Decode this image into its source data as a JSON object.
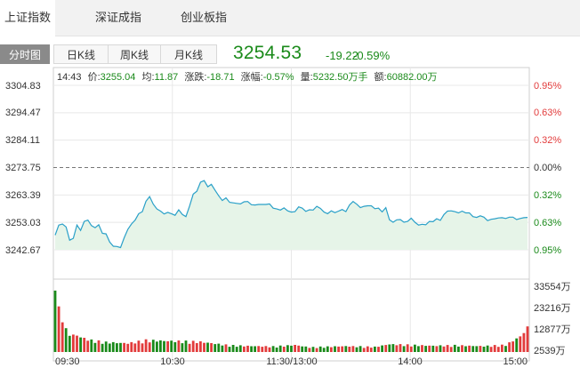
{
  "top_tabs": [
    {
      "label": "上证指数",
      "active": true
    },
    {
      "label": "深证成指",
      "active": false
    },
    {
      "label": "创业板指",
      "active": false
    }
  ],
  "sub_tabs": [
    {
      "label": "分时图",
      "active": true
    },
    {
      "label": "日K线",
      "active": false
    },
    {
      "label": "周K线",
      "active": false
    },
    {
      "label": "月K线",
      "active": false
    }
  ],
  "quote": {
    "price": "3254.53",
    "change": "-19.22",
    "change_pct": "-0.59%"
  },
  "info_line": {
    "time": "14:43",
    "price_label": "价:",
    "price": "3255.04",
    "avg_label": "均:",
    "avg": "11.87",
    "chg_label": "涨跌:",
    "chg": "-18.71",
    "amp_label": "涨幅:",
    "amp": "-0.57%",
    "vol_label": "量:",
    "vol": "5232.50万手",
    "amt_label": "额:",
    "amt": "60882.00万"
  },
  "colors": {
    "down": "#1a8a1a",
    "up": "#e23b3b",
    "line": "#2aa0c8",
    "area": "#e6f4e8"
  },
  "chart_data": {
    "type": "line",
    "price_axis": [
      "3304.83",
      "3294.47",
      "3284.11",
      "3273.75",
      "3263.39",
      "3253.03",
      "3242.67"
    ],
    "pct_axis": [
      "0.95%",
      "0.63%",
      "0.32%",
      "0.00%",
      "0.32%",
      "0.63%",
      "0.95%"
    ],
    "volume_axis": [
      "33554万",
      "23216万",
      "12877万",
      "2539万"
    ],
    "time_labels": [
      "09:30",
      "10:30",
      "11:30/13:00",
      "14:00",
      "15:00"
    ],
    "ylim": [
      3242.67,
      3304.83
    ],
    "prev_close": 3273.75,
    "price_keyframes": [
      [
        0,
        3248.2
      ],
      [
        1,
        3252.0
      ],
      [
        2,
        3252.4
      ],
      [
        3,
        3251.3
      ],
      [
        4,
        3246.3
      ],
      [
        5,
        3247.0
      ],
      [
        6,
        3252.0
      ],
      [
        7,
        3250.0
      ],
      [
        8,
        3253.4
      ],
      [
        9,
        3253.9
      ],
      [
        10,
        3251.8
      ],
      [
        11,
        3251.0
      ],
      [
        12,
        3252.1
      ],
      [
        13,
        3248.9
      ],
      [
        14,
        3248.7
      ],
      [
        15,
        3245.6
      ],
      [
        16,
        3244.0
      ],
      [
        17,
        3243.9
      ],
      [
        18,
        3243.5
      ],
      [
        19,
        3247.2
      ],
      [
        20,
        3250.4
      ],
      [
        21,
        3252.4
      ],
      [
        22,
        3253.9
      ],
      [
        23,
        3256.3
      ],
      [
        24,
        3257.1
      ],
      [
        25,
        3261.0
      ],
      [
        26,
        3262.8
      ],
      [
        27,
        3259.9
      ],
      [
        28,
        3258.1
      ],
      [
        29,
        3257.3
      ],
      [
        30,
        3256.2
      ],
      [
        31,
        3256.8
      ],
      [
        32,
        3256.3
      ],
      [
        33,
        3255.7
      ],
      [
        34,
        3257.8
      ],
      [
        35,
        3256.0
      ],
      [
        36,
        3255.2
      ],
      [
        37,
        3259.2
      ],
      [
        38,
        3263.7
      ],
      [
        39,
        3264.8
      ],
      [
        40,
        3268.2
      ],
      [
        41,
        3268.8
      ],
      [
        42,
        3266.5
      ],
      [
        43,
        3267.4
      ],
      [
        44,
        3265.2
      ],
      [
        45,
        3263.1
      ],
      [
        46,
        3261.3
      ],
      [
        47,
        3262.3
      ],
      [
        48,
        3260.6
      ],
      [
        49,
        3260.4
      ],
      [
        50,
        3260.2
      ],
      [
        51,
        3260.0
      ],
      [
        52,
        3260.8
      ],
      [
        53,
        3260.9
      ],
      [
        54,
        3259.7
      ],
      [
        55,
        3259.6
      ],
      [
        56,
        3259.8
      ],
      [
        57,
        3259.8
      ],
      [
        58,
        3259.8
      ],
      [
        59,
        3260.0
      ],
      [
        60,
        3258.4
      ],
      [
        61,
        3258.1
      ],
      [
        62,
        3257.7
      ],
      [
        63,
        3258.5
      ],
      [
        64,
        3257.4
      ],
      [
        65,
        3256.9
      ],
      [
        66,
        3257.1
      ],
      [
        67,
        3258.9
      ],
      [
        68,
        3258.4
      ],
      [
        69,
        3257.2
      ],
      [
        70,
        3257.8
      ],
      [
        71,
        3257.7
      ],
      [
        72,
        3259.1
      ],
      [
        73,
        3258.3
      ],
      [
        74,
        3256.9
      ],
      [
        75,
        3256.3
      ],
      [
        76,
        3257.4
      ],
      [
        77,
        3256.7
      ],
      [
        78,
        3257.3
      ],
      [
        79,
        3257.9
      ],
      [
        80,
        3257.1
      ],
      [
        81,
        3259.6
      ],
      [
        82,
        3260.9
      ],
      [
        83,
        3259.9
      ],
      [
        84,
        3258.6
      ],
      [
        85,
        3259.1
      ],
      [
        86,
        3259.3
      ],
      [
        87,
        3259.3
      ],
      [
        88,
        3258.2
      ],
      [
        89,
        3258.4
      ],
      [
        90,
        3257.0
      ],
      [
        91,
        3258.6
      ],
      [
        92,
        3254.0
      ],
      [
        93,
        3253.1
      ],
      [
        94,
        3254.0
      ],
      [
        95,
        3254.1
      ],
      [
        96,
        3253.1
      ],
      [
        97,
        3253.4
      ],
      [
        98,
        3254.6
      ],
      [
        99,
        3253.1
      ],
      [
        100,
        3252.0
      ],
      [
        101,
        3252.3
      ],
      [
        102,
        3252.1
      ],
      [
        103,
        3253.4
      ],
      [
        104,
        3253.3
      ],
      [
        105,
        3254.4
      ],
      [
        106,
        3253.8
      ],
      [
        107,
        3256.0
      ],
      [
        108,
        3257.3
      ],
      [
        109,
        3257.4
      ],
      [
        110,
        3257.1
      ],
      [
        111,
        3256.6
      ],
      [
        112,
        3257.3
      ],
      [
        113,
        3256.6
      ],
      [
        114,
        3256.6
      ],
      [
        115,
        3255.2
      ],
      [
        116,
        3254.9
      ],
      [
        117,
        3255.5
      ],
      [
        118,
        3255.0
      ],
      [
        119,
        3253.7
      ],
      [
        120,
        3254.2
      ],
      [
        121,
        3254.4
      ],
      [
        122,
        3254.7
      ],
      [
        123,
        3254.8
      ],
      [
        124,
        3254.5
      ],
      [
        125,
        3255.0
      ],
      [
        126,
        3255.0
      ],
      [
        127,
        3254.1
      ],
      [
        128,
        3254.5
      ],
      [
        129,
        3254.8
      ],
      [
        130,
        3254.9
      ]
    ],
    "volume_keyframes": [
      [
        0,
        29000
      ],
      [
        2,
        14000
      ],
      [
        4,
        9000
      ],
      [
        6,
        8500
      ],
      [
        8,
        7000
      ],
      [
        10,
        6000
      ],
      [
        14,
        5000
      ],
      [
        20,
        4500
      ],
      [
        25,
        6000
      ],
      [
        40,
        5200
      ],
      [
        48,
        3400
      ],
      [
        55,
        3000
      ],
      [
        60,
        2800
      ],
      [
        66,
        3600
      ],
      [
        70,
        2400
      ],
      [
        80,
        3000
      ],
      [
        88,
        2600
      ],
      [
        92,
        4000
      ],
      [
        96,
        3700
      ],
      [
        104,
        3200
      ],
      [
        110,
        3400
      ],
      [
        118,
        3000
      ],
      [
        124,
        3600
      ],
      [
        128,
        8000
      ],
      [
        130,
        12500
      ]
    ]
  }
}
